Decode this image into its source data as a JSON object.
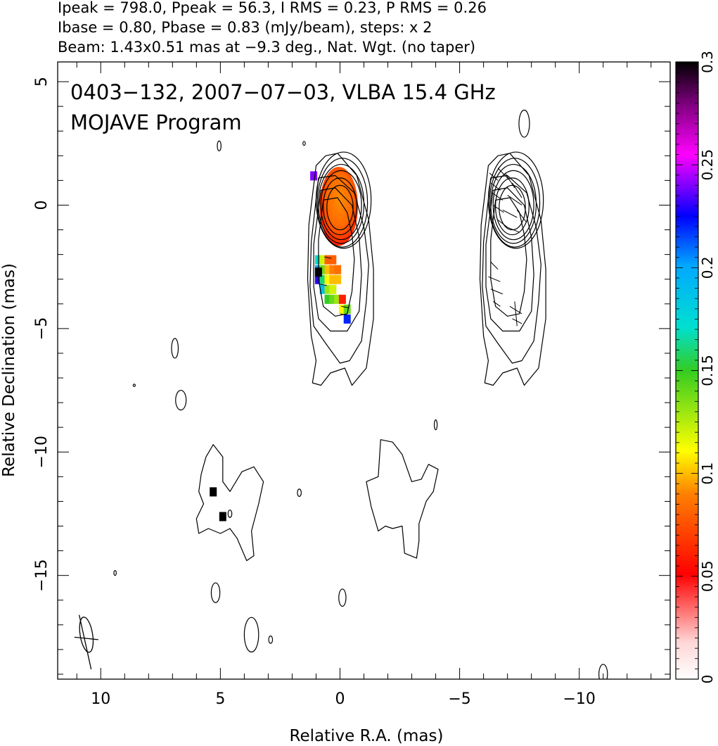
{
  "chart_data": {
    "type": "heatmap",
    "header_lines": [
      "Ipeak = 798.0, Ppeak = 56.3, I RMS = 0.23, P RMS = 0.26",
      "Ibase = 0.80, Pbase = 0.83 (mJy/beam), steps: x 2",
      "Beam: 1.43x0.51 mas at −9.3 deg., Nat. Wgt. (no taper)"
    ],
    "title": "0403−132, 2007−07−03, VLBA 15.4 GHz",
    "subtitle": "MOJAVE Program",
    "xlabel": "Relative R.A. (mas)",
    "ylabel": "Relative Declination (mas)",
    "xlim": [
      11.8,
      -13.8
    ],
    "ylim": [
      -19.2,
      5.8
    ],
    "x_ticks": [
      10,
      5,
      0,
      -5,
      -10
    ],
    "x_tick_labels": [
      "10",
      "5",
      "0",
      "−5",
      "−10"
    ],
    "y_ticks": [
      5,
      0,
      -5,
      -10,
      -15
    ],
    "y_tick_labels": [
      "5",
      "0",
      "−5",
      "−10",
      "−15"
    ],
    "colorbar": {
      "range": [
        0,
        0.3
      ],
      "ticks": [
        0,
        0.05,
        0.1,
        0.15,
        0.2,
        0.25,
        0.3
      ],
      "tick_labels": [
        "0",
        "0.05",
        "0.1",
        "0.15",
        "0.2",
        "0.25",
        "0.3"
      ]
    },
    "panels": [
      {
        "name": "left",
        "x_offset": 0
      },
      {
        "name": "right",
        "x_offset": -7.2
      }
    ],
    "core_contours": [
      {
        "cx": 0.0,
        "cy": -0.1,
        "rx": 0.55,
        "ry": 0.9
      },
      {
        "cx": 0.0,
        "cy": -0.05,
        "rx": 0.7,
        "ry": 1.15
      },
      {
        "cx": -0.05,
        "cy": 0.0,
        "rx": 0.85,
        "ry": 1.4
      },
      {
        "cx": -0.05,
        "cy": 0.05,
        "rx": 0.95,
        "ry": 1.6
      },
      {
        "cx": -0.1,
        "cy": 0.1,
        "rx": 1.05,
        "ry": 1.8
      },
      {
        "cx": -0.15,
        "cy": 0.2,
        "rx": 1.15,
        "ry": 1.95
      }
    ],
    "jet_contours": [
      [
        [
          0.7,
          0.2
        ],
        [
          0.9,
          -1.4
        ],
        [
          0.9,
          -3.0
        ],
        [
          0.7,
          -4.1
        ],
        [
          0.2,
          -4.5
        ],
        [
          -0.3,
          -4.4
        ],
        [
          -0.5,
          -3.5
        ],
        [
          -0.6,
          -2.2
        ],
        [
          -0.5,
          -1.2
        ],
        [
          -0.3,
          -0.3
        ],
        [
          0.1,
          0.3
        ]
      ],
      [
        [
          0.8,
          0.6
        ],
        [
          1.1,
          -1.6
        ],
        [
          1.1,
          -3.3
        ],
        [
          0.9,
          -4.6
        ],
        [
          0.4,
          -5.1
        ],
        [
          -0.3,
          -5.1
        ],
        [
          -0.8,
          -4.3
        ],
        [
          -0.9,
          -2.8
        ],
        [
          -0.8,
          -1.3
        ],
        [
          -0.5,
          0.0
        ],
        [
          0.2,
          0.7
        ]
      ],
      [
        [
          0.9,
          1.1
        ],
        [
          1.2,
          -1.5
        ],
        [
          1.25,
          -3.3
        ],
        [
          1.1,
          -4.9
        ],
        [
          0.6,
          -5.6
        ],
        [
          0.0,
          -6.4
        ],
        [
          -0.4,
          -6.3
        ],
        [
          -0.9,
          -5.5
        ],
        [
          -1.1,
          -3.9
        ],
        [
          -1.2,
          -2.4
        ],
        [
          -1.0,
          -0.9
        ],
        [
          -0.6,
          0.5
        ],
        [
          0.2,
          1.2
        ]
      ],
      [
        [
          1.0,
          1.6
        ],
        [
          1.3,
          -0.8
        ],
        [
          1.35,
          -3.0
        ],
        [
          1.2,
          -5.3
        ],
        [
          1.0,
          -6.3
        ],
        [
          1.15,
          -7.2
        ],
        [
          0.8,
          -7.3
        ],
        [
          0.4,
          -6.8
        ],
        [
          -0.2,
          -6.6
        ],
        [
          -0.5,
          -7.3
        ],
        [
          -1.1,
          -6.6
        ],
        [
          -1.4,
          -4.6
        ],
        [
          -1.4,
          -2.6
        ],
        [
          -1.2,
          -0.6
        ],
        [
          -0.7,
          1.2
        ],
        [
          0.1,
          2.1
        ],
        [
          0.6,
          2.0
        ]
      ]
    ],
    "right_panel_hatches": [
      [
        [
          -6.25,
          1.3
        ],
        [
          -6.6,
          1.0
        ]
      ],
      [
        [
          -6.3,
          0.9
        ],
        [
          -6.7,
          0.6
        ]
      ],
      [
        [
          -6.35,
          0.5
        ],
        [
          -6.8,
          0.2
        ]
      ],
      [
        [
          -6.4,
          0.0
        ],
        [
          -6.85,
          -0.3
        ]
      ],
      [
        [
          -6.6,
          -0.6
        ],
        [
          -7.0,
          -0.9
        ]
      ],
      [
        [
          -6.6,
          1.5
        ],
        [
          -7.1,
          1.0
        ]
      ],
      [
        [
          -6.9,
          1.3
        ],
        [
          -7.3,
          0.7
        ]
      ],
      [
        [
          -7.0,
          0.4
        ],
        [
          -7.6,
          0.0
        ]
      ],
      [
        [
          -7.2,
          0.9
        ],
        [
          -7.6,
          0.3
        ]
      ],
      [
        [
          -7.4,
          -0.2
        ],
        [
          -7.8,
          -0.7
        ]
      ],
      [
        [
          -6.8,
          -0.2
        ],
        [
          -7.4,
          -0.5
        ]
      ],
      [
        [
          -7.0,
          -0.9
        ],
        [
          -7.5,
          -1.1
        ]
      ],
      [
        [
          -6.3,
          -2.3
        ],
        [
          -6.6,
          -2.6
        ]
      ],
      [
        [
          -6.2,
          -2.9
        ],
        [
          -6.7,
          -3.1
        ]
      ],
      [
        [
          -6.3,
          -3.4
        ],
        [
          -6.8,
          -3.6
        ]
      ],
      [
        [
          -6.4,
          -3.9
        ],
        [
          -6.7,
          -4.1
        ]
      ],
      [
        [
          -7.1,
          -4.1
        ],
        [
          -7.6,
          -4.4
        ]
      ],
      [
        [
          -7.2,
          -4.6
        ],
        [
          -7.6,
          -4.8
        ]
      ],
      [
        [
          -7.3,
          -3.9
        ],
        [
          -7.4,
          -4.9
        ]
      ]
    ],
    "small_contours": [
      {
        "cx": -7.7,
        "cy": 3.3,
        "rx": 0.22,
        "ry": 0.55
      },
      {
        "cx": 5.05,
        "cy": 2.4,
        "rx": 0.08,
        "ry": 0.2
      },
      {
        "cx": 1.5,
        "cy": 2.5,
        "rx": 0.05,
        "ry": 0.08
      },
      {
        "cx": 6.9,
        "cy": -5.8,
        "rx": 0.14,
        "ry": 0.4
      },
      {
        "cx": 6.65,
        "cy": -7.9,
        "rx": 0.22,
        "ry": 0.4
      },
      {
        "cx": 8.6,
        "cy": -7.3,
        "rx": 0.03,
        "ry": 0.05
      },
      {
        "cx": -4.0,
        "cy": -8.9,
        "rx": 0.06,
        "ry": 0.2
      },
      {
        "cx": 9.4,
        "cy": -14.9,
        "rx": 0.05,
        "ry": 0.1
      },
      {
        "cx": 5.2,
        "cy": -15.7,
        "rx": 0.18,
        "ry": 0.4
      },
      {
        "cx": -0.1,
        "cy": -15.9,
        "rx": 0.15,
        "ry": 0.35
      },
      {
        "cx": 3.7,
        "cy": -17.4,
        "rx": 0.3,
        "ry": 0.7
      },
      {
        "cx": 2.9,
        "cy": -17.6,
        "rx": 0.08,
        "ry": 0.15
      },
      {
        "cx": -11.0,
        "cy": -19.0,
        "rx": 0.18,
        "ry": 0.4
      },
      {
        "cx": 1.7,
        "cy": -11.65,
        "rx": 0.08,
        "ry": 0.15
      },
      {
        "cx": 4.6,
        "cy": -12.5,
        "rx": 0.08,
        "ry": 0.15
      }
    ],
    "blob_contours": [
      [
        [
          5.3,
          -9.7
        ],
        [
          4.9,
          -10.2
        ],
        [
          4.9,
          -11.2
        ],
        [
          4.6,
          -11.6
        ],
        [
          4.1,
          -10.8
        ],
        [
          3.6,
          -10.6
        ],
        [
          3.2,
          -11.2
        ],
        [
          3.4,
          -12.1
        ],
        [
          3.7,
          -13.2
        ],
        [
          3.6,
          -14.2
        ],
        [
          3.9,
          -14.4
        ],
        [
          4.3,
          -13.5
        ],
        [
          4.6,
          -13.1
        ],
        [
          5.0,
          -13.3
        ],
        [
          5.5,
          -13.1
        ],
        [
          5.9,
          -13.3
        ],
        [
          6.0,
          -12.7
        ],
        [
          5.7,
          -12.1
        ],
        [
          5.9,
          -11.6
        ],
        [
          5.8,
          -10.9
        ],
        [
          5.6,
          -10.2
        ]
      ],
      [
        [
          -1.7,
          -9.5
        ],
        [
          -1.6,
          -11.0
        ],
        [
          -1.1,
          -11.2
        ],
        [
          -1.3,
          -12.2
        ],
        [
          -1.6,
          -13.2
        ],
        [
          -1.9,
          -13.0
        ],
        [
          -2.2,
          -13.1
        ],
        [
          -2.6,
          -13.0
        ],
        [
          -2.7,
          -14.1
        ],
        [
          -3.2,
          -14.3
        ],
        [
          -3.3,
          -13.6
        ],
        [
          -3.3,
          -12.9
        ],
        [
          -3.6,
          -12.0
        ],
        [
          -3.9,
          -11.6
        ],
        [
          -4.1,
          -10.7
        ],
        [
          -3.7,
          -10.5
        ],
        [
          -3.4,
          -11.1
        ],
        [
          -3.0,
          -11.2
        ],
        [
          -2.6,
          -10.1
        ],
        [
          -2.2,
          -9.6
        ]
      ]
    ],
    "pol_core": {
      "cx": 0.05,
      "cy": -0.05,
      "rx": 0.8,
      "ry": 1.6
    },
    "pol_pixels": [
      {
        "x": 0.9,
        "y": -2.2,
        "v": 0.17
      },
      {
        "x": 0.9,
        "y": -2.6,
        "v": 0.2
      },
      {
        "x": 0.9,
        "y": -3.0,
        "v": 0.23
      },
      {
        "x": 0.7,
        "y": -2.2,
        "v": 0.12
      },
      {
        "x": 0.7,
        "y": -2.6,
        "v": 0.14
      },
      {
        "x": 0.7,
        "y": -3.0,
        "v": 0.16
      },
      {
        "x": 0.7,
        "y": -3.4,
        "v": 0.19
      },
      {
        "x": 0.5,
        "y": -2.2,
        "v": 0.08
      },
      {
        "x": 0.5,
        "y": -2.6,
        "v": 0.1
      },
      {
        "x": 0.5,
        "y": -3.0,
        "v": 0.11
      },
      {
        "x": 0.5,
        "y": -3.4,
        "v": 0.13
      },
      {
        "x": 0.5,
        "y": -3.8,
        "v": 0.15
      },
      {
        "x": 0.3,
        "y": -2.2,
        "v": 0.08
      },
      {
        "x": 0.3,
        "y": -2.6,
        "v": 0.09
      },
      {
        "x": 0.3,
        "y": -3.0,
        "v": 0.1
      },
      {
        "x": 0.3,
        "y": -3.4,
        "v": 0.12
      },
      {
        "x": 0.3,
        "y": -3.8,
        "v": 0.14
      },
      {
        "x": 0.1,
        "y": -2.6,
        "v": 0.085
      },
      {
        "x": 0.1,
        "y": -3.0,
        "v": 0.1
      },
      {
        "x": 0.1,
        "y": -3.8,
        "v": 0.13
      },
      {
        "x": -0.1,
        "y": -3.8,
        "v": 0.06
      },
      {
        "x": -0.1,
        "y": -4.2,
        "v": 0.11
      },
      {
        "x": -0.3,
        "y": -4.2,
        "v": 0.14
      },
      {
        "x": -0.3,
        "y": -4.6,
        "v": 0.22
      },
      {
        "x": 1.1,
        "y": 1.2,
        "v": 0.24
      },
      {
        "x": 0.9,
        "y": -2.7,
        "v": 0.3
      },
      {
        "x": 5.3,
        "y": -11.6,
        "v": 0.3
      },
      {
        "x": 4.9,
        "y": -12.6,
        "v": 0.3
      }
    ],
    "pol_ticks": [
      [
        0.5,
        -2.1
      ],
      [
        0.7,
        -3.2
      ],
      [
        -0.2,
        -4.1
      ],
      [
        -0.15,
        -4.4
      ]
    ],
    "beam": {
      "cx": 10.6,
      "cy": -17.4,
      "rx": 0.26,
      "ry": 0.72
    },
    "beam_cross": [
      [
        [
          10.4,
          -18.8
        ],
        [
          10.9,
          -16.6
        ]
      ],
      [
        [
          10.1,
          -17.6
        ],
        [
          11.1,
          -17.5
        ]
      ]
    ]
  }
}
